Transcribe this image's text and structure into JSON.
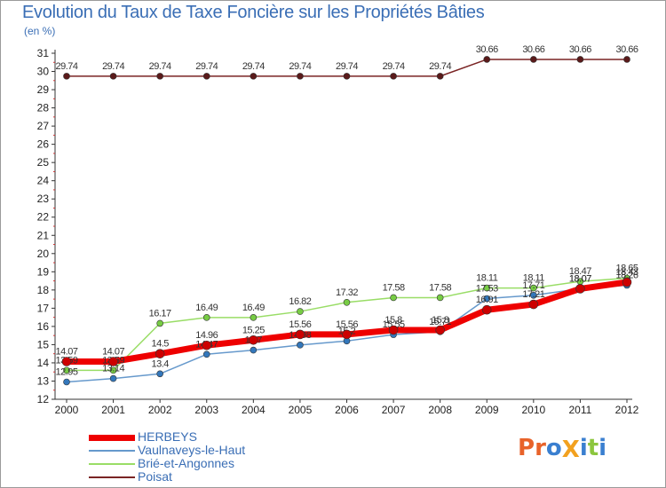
{
  "header": {
    "title": "Evolution du Taux de Taxe Foncière sur les Propriétés Bâties",
    "subtitle": "(en %)"
  },
  "logo": {
    "text": "ProXiti",
    "colors": [
      "#e8632a",
      "#e8632a",
      "#3a7fd0",
      "#f2a11f",
      "#3a7fd0",
      "#8cc63e",
      "#3a7fd0"
    ]
  },
  "chart_data": {
    "type": "line",
    "title": "Evolution du Taux de Taxe Foncière sur les Propriétés Bâties",
    "ylabel": "(en %)",
    "xlabel": "",
    "x": [
      "2000",
      "2001",
      "2002",
      "2003",
      "2004",
      "2005",
      "2006",
      "2007",
      "2008",
      "2009",
      "2010",
      "2011",
      "2012"
    ],
    "ylim": [
      12,
      31
    ],
    "yticks": [
      12,
      13,
      14,
      15,
      16,
      17,
      18,
      19,
      20,
      21,
      22,
      23,
      24,
      25,
      26,
      27,
      28,
      29,
      30,
      31
    ],
    "grid": false,
    "legend_position": "bottom-left",
    "series": [
      {
        "name": "Poisat",
        "color": "#7a2424",
        "marker_color": "#5a1a1a",
        "line_width": 1.5,
        "values": [
          29.74,
          29.74,
          29.74,
          29.74,
          29.74,
          29.74,
          29.74,
          29.74,
          29.74,
          30.66,
          30.66,
          30.66,
          30.66
        ],
        "labels": [
          "29.74",
          "29.74",
          "29.74",
          "29.74",
          "29.74",
          "29.74",
          "29.74",
          "29.74",
          "29.74",
          "30.66",
          "30.66",
          "30.66",
          "30.66"
        ]
      },
      {
        "name": "Brié-et-Angonnes",
        "color": "#99dd66",
        "marker_color": "#77cc44",
        "line_width": 1.5,
        "values": [
          13.59,
          13.59,
          16.17,
          16.49,
          16.49,
          16.82,
          17.32,
          17.58,
          17.58,
          18.11,
          18.11,
          18.47,
          18.65
        ],
        "labels": [
          "13.59",
          "13.59",
          "16.17",
          "16.49",
          "16.49",
          "16.82",
          "17.32",
          "17.58",
          "17.58",
          "18.11",
          "18.11",
          "18.47",
          "18.65"
        ]
      },
      {
        "name": "Vaulnaveys-le-Haut",
        "color": "#6699cc",
        "marker_color": "#3377bb",
        "line_width": 1.5,
        "values": [
          12.95,
          13.14,
          13.4,
          14.47,
          14.7,
          14.98,
          15.2,
          15.55,
          15.71,
          17.53,
          17.71,
          18.07,
          18.26
        ],
        "labels": [
          "12.95",
          "13.14",
          "13.4",
          "14.47",
          "14.7",
          "14.98",
          "15.2",
          "15.55",
          "15.71",
          "17.53",
          "17.71",
          "18.07",
          "18.26"
        ]
      },
      {
        "name": "HERBEYS",
        "color": "#ee0000",
        "marker_color": "#cc0000",
        "line_width": 7,
        "values": [
          14.07,
          14.07,
          14.5,
          14.96,
          15.25,
          15.56,
          15.56,
          15.8,
          15.8,
          16.91,
          17.21,
          18.07,
          18.43
        ],
        "labels": [
          "14.07",
          "14.07",
          "14.5",
          "14.96",
          "15.25",
          "15.56",
          "15.56",
          "15.8",
          "15.8",
          "16.91",
          "17.21",
          "18.07",
          "18.43"
        ]
      }
    ],
    "legend": [
      {
        "name": "HERBEYS",
        "color": "#ee0000",
        "thickness": 7
      },
      {
        "name": "Vaulnaveys-le-Haut",
        "color": "#6699cc",
        "thickness": 2
      },
      {
        "name": "Brié-et-Angonnes",
        "color": "#99dd66",
        "thickness": 2
      },
      {
        "name": "Poisat",
        "color": "#7a2424",
        "thickness": 2
      }
    ]
  }
}
